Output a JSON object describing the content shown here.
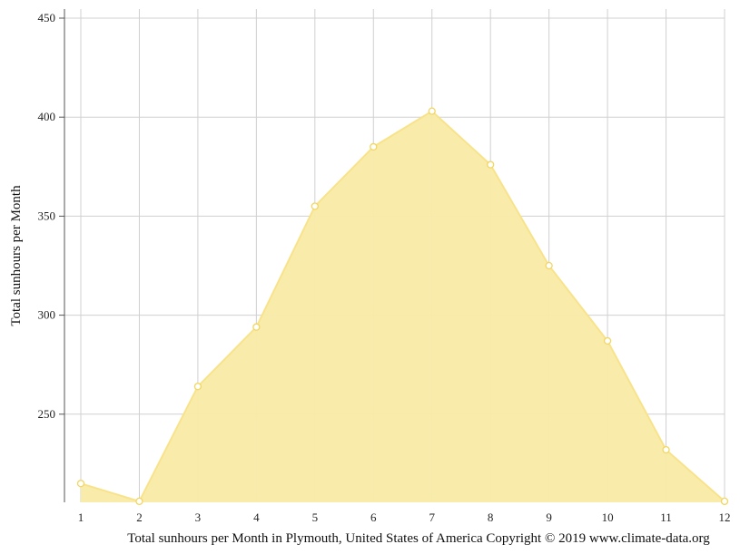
{
  "chart_data": {
    "type": "area",
    "x": [
      1,
      2,
      3,
      4,
      5,
      6,
      7,
      8,
      9,
      10,
      11,
      12
    ],
    "series": [
      {
        "values": [
          215,
          206,
          264,
          294,
          355,
          385,
          403,
          376,
          325,
          287,
          232,
          206
        ]
      }
    ],
    "xlabel": "",
    "ylabel": "Total sunhours per Month",
    "caption": "Total sunhours per Month in Plymouth, United States of America Copyright © 2019 www.climate-data.org",
    "xlim": [
      1,
      12
    ],
    "ylim": [
      205,
      450
    ],
    "yticks": [
      250,
      300,
      350,
      400,
      450
    ],
    "xticks": [
      1,
      2,
      3,
      4,
      5,
      6,
      7,
      8,
      9,
      10,
      11,
      12
    ],
    "grid": true,
    "colors": {
      "fill": "#f9eba7",
      "line": "#f8e38a",
      "marker_fill": "#ffffff",
      "marker_stroke": "#f2d660"
    }
  }
}
